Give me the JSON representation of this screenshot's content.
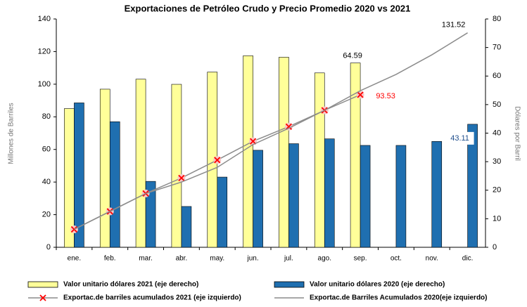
{
  "chart_data": {
    "type": "bar",
    "title": "Exportaciones de Petróleo Crudo y Precio Promedio 2020 vs 2021",
    "ylabel": "Millones de Barriles",
    "y2label": "Dólares por Barril",
    "categories": [
      "ene.",
      "feb.",
      "mar.",
      "abr.",
      "may.",
      "jun.",
      "jul.",
      "ago.",
      "sep.",
      "oct.",
      "nov.",
      "dic."
    ],
    "ylim": [
      0,
      140
    ],
    "yticks": [
      0,
      20,
      40,
      60,
      80,
      100,
      120,
      140
    ],
    "y2lim": [
      0,
      80
    ],
    "y2ticks": [
      0,
      10,
      20,
      30,
      40,
      50,
      60,
      70,
      80
    ],
    "grid": false,
    "legend": "bottom",
    "series": [
      {
        "name": "Valor unitario dólares 2021 (eje derecho)",
        "type": "bar",
        "axis": "y2",
        "color": "#ffff99",
        "values": [
          48.6,
          55.4,
          58.9,
          57.1,
          61.4,
          67.1,
          66.6,
          61.1,
          64.59,
          null,
          null,
          null
        ]
      },
      {
        "name": "Valor unitario dólares 2020 (eje derecho)",
        "type": "bar",
        "axis": "y2",
        "color": "#1f6fb0",
        "values": [
          50.6,
          44.0,
          23.1,
          14.3,
          24.6,
          34.0,
          36.3,
          38.0,
          35.7,
          35.7,
          37.1,
          43.11
        ]
      },
      {
        "name": "Exportac.de barriles acumulados 2021 (eje izquierdo)",
        "type": "line",
        "color": "#8c8c8c",
        "marker": "#ff0000",
        "values": [
          11,
          22,
          33,
          42.5,
          53.5,
          65,
          74,
          84,
          93.53,
          null,
          null,
          null
        ]
      },
      {
        "name": "Exportac.de Barriles Acumulados 2020(eje izquierdo)",
        "type": "line",
        "color": "#8c8c8c",
        "values": [
          11,
          22,
          33,
          40,
          49,
          63,
          73,
          84,
          96,
          106,
          118,
          131.52
        ]
      }
    ]
  }
}
